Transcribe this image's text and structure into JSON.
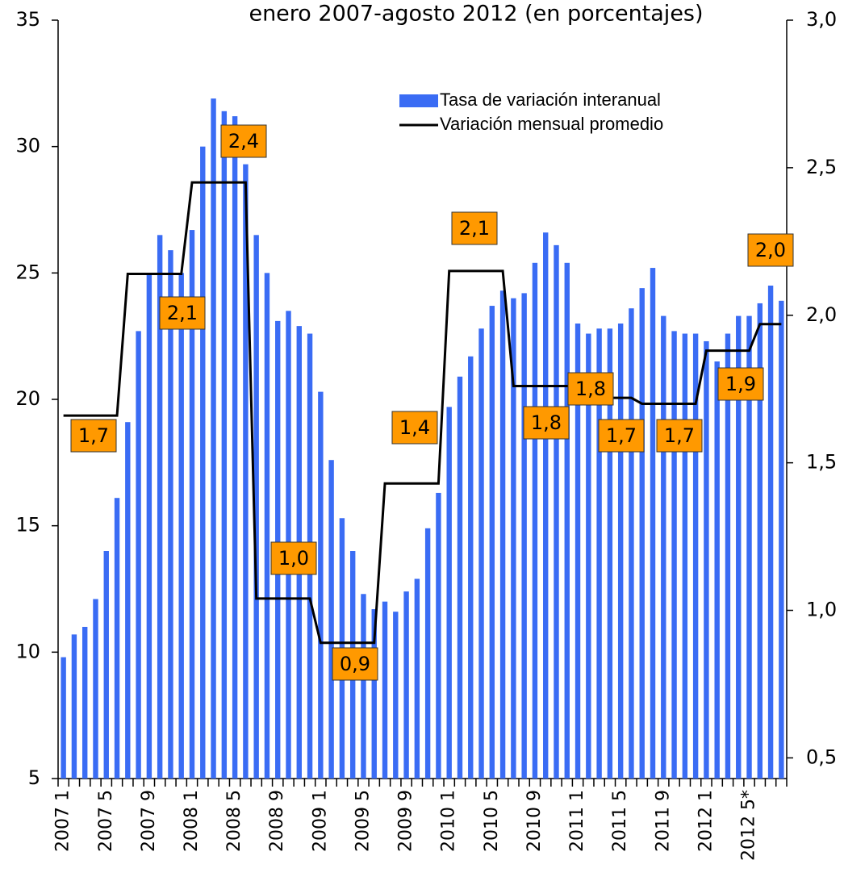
{
  "chart_data": {
    "type": "bar-line",
    "title": "enero 2007-agosto 2012 (en porcentajes)",
    "categories": [
      "2007 1",
      null,
      null,
      null,
      "2007 5",
      null,
      null,
      null,
      "2007 9",
      null,
      null,
      null,
      "2008 1",
      null,
      null,
      null,
      "2008 5",
      null,
      null,
      null,
      "2008 9",
      null,
      null,
      null,
      "2009 1",
      null,
      null,
      null,
      "2009 5",
      null,
      null,
      null,
      "2009 9",
      null,
      null,
      null,
      "2010 1",
      null,
      null,
      null,
      "2010 5",
      null,
      null,
      null,
      "2010 9",
      null,
      null,
      null,
      "2011 1",
      null,
      null,
      null,
      "2011 5",
      null,
      null,
      null,
      "2011 9",
      null,
      null,
      null,
      "2012 1",
      null,
      null,
      null,
      "2012 5*",
      null,
      null,
      null
    ],
    "series": [
      {
        "name": "Tasa de variación interanual",
        "color": "#3a6cf4",
        "type": "bar",
        "values": [
          9.8,
          10.7,
          11.0,
          12.1,
          14.0,
          16.1,
          19.1,
          22.7,
          25.0,
          26.5,
          25.9,
          25.0,
          26.7,
          30.0,
          31.9,
          31.4,
          31.2,
          29.3,
          26.5,
          25.0,
          23.1,
          23.5,
          22.9,
          22.6,
          20.3,
          17.6,
          15.3,
          14.0,
          12.3,
          11.7,
          12.0,
          11.6,
          12.4,
          12.9,
          14.9,
          16.3,
          19.7,
          20.9,
          21.7,
          22.8,
          23.7,
          24.3,
          24.0,
          24.2,
          25.4,
          26.6,
          26.1,
          25.4,
          23.0,
          22.6,
          22.8,
          22.8,
          23.0,
          23.6,
          24.4,
          25.2,
          23.3,
          22.7,
          22.6,
          22.6,
          22.3,
          21.5,
          22.6,
          23.3,
          23.3,
          23.8,
          24.5,
          23.9
        ]
      },
      {
        "name": "Variación mensual promedio",
        "color": "#000000",
        "type": "line",
        "axis": "y2",
        "values": [
          1.66,
          1.66,
          1.66,
          1.66,
          1.66,
          1.66,
          2.14,
          2.14,
          2.14,
          2.14,
          2.14,
          2.14,
          2.45,
          2.45,
          2.45,
          2.45,
          2.45,
          2.45,
          1.04,
          1.04,
          1.04,
          1.04,
          1.04,
          1.04,
          0.89,
          0.89,
          0.89,
          0.89,
          0.89,
          0.89,
          1.43,
          1.43,
          1.43,
          1.43,
          1.43,
          1.43,
          2.15,
          2.15,
          2.15,
          2.15,
          2.15,
          2.15,
          1.76,
          1.76,
          1.76,
          1.76,
          1.76,
          1.76,
          1.76,
          1.76,
          1.76,
          1.72,
          1.72,
          1.72,
          1.7,
          1.7,
          1.7,
          1.7,
          1.7,
          1.7,
          1.88,
          1.88,
          1.88,
          1.88,
          1.88,
          1.97,
          1.97,
          1.97
        ]
      }
    ],
    "ylim": [
      5,
      35
    ],
    "yticks": [
      5,
      10,
      15,
      20,
      25,
      30,
      35
    ],
    "y2lim": [
      0.43,
      3.0
    ],
    "y2ticks": [
      {
        "value": 0.5,
        "label": "0,5"
      },
      {
        "value": 1.0,
        "label": "1,0"
      },
      {
        "value": 1.5,
        "label": "1,5"
      },
      {
        "value": 2.0,
        "label": "2,0"
      },
      {
        "value": 2.5,
        "label": "2,5"
      },
      {
        "value": 3.0,
        "label": "3,0"
      }
    ],
    "annotations": [
      "1,7",
      "2,1",
      "2,4",
      "1,0",
      "0,9",
      "1,4",
      "2,1",
      "1,8",
      "1,8",
      "1,7",
      "1,7",
      "1,9",
      "2,0"
    ],
    "annotation_color": "#ff9900"
  }
}
